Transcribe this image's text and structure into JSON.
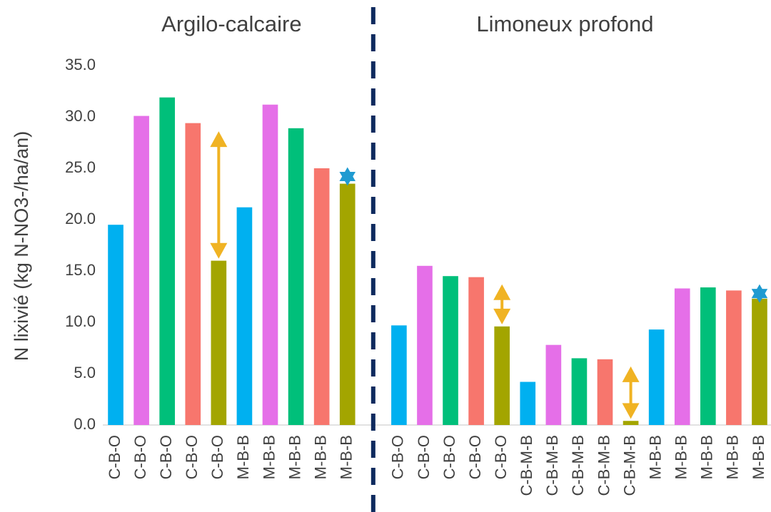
{
  "chart_data": {
    "type": "bar",
    "y_label": "N lixivié (kg N-NO3-/ha/an)",
    "group_labels": [
      "Argilo-calcaire",
      "Limoneux profond"
    ],
    "categories": [
      "C-B-O",
      "C-B-O",
      "C-B-O",
      "C-B-O",
      "C-B-O",
      "M-B-B",
      "M-B-B",
      "M-B-B",
      "M-B-B",
      "M-B-B",
      null,
      "C-B-O",
      "C-B-O",
      "C-B-O",
      "C-B-O",
      "C-B-O",
      "C-B-M-B",
      "C-B-M-B",
      "C-B-M-B",
      "C-B-M-B",
      "C-B-M-B",
      "M-B-B",
      "M-B-B",
      "M-B-B",
      "M-B-B",
      "M-B-B"
    ],
    "values": [
      19.5,
      30.1,
      31.9,
      29.4,
      16.0,
      21.2,
      31.2,
      28.9,
      25.0,
      23.5,
      null,
      9.7,
      15.5,
      14.5,
      14.4,
      9.6,
      4.2,
      7.8,
      6.5,
      6.4,
      0.4,
      9.3,
      13.3,
      13.4,
      13.1,
      12.3
    ],
    "colors": [
      "#00b0f0",
      "#e56fe8",
      "#00bf7a",
      "#f7766d",
      "#a3a500",
      "#00b0f0",
      "#e56fe8",
      "#00bf7a",
      "#f7766d",
      "#a3a500",
      null,
      "#00b0f0",
      "#e56fe8",
      "#00bf7a",
      "#f7766d",
      "#a3a500",
      "#00b0f0",
      "#e56fe8",
      "#00bf7a",
      "#f7766d",
      "#a3a500",
      "#00b0f0",
      "#e56fe8",
      "#00bf7a",
      "#f7766d",
      "#a3a500"
    ],
    "ylim": [
      0,
      35
    ],
    "yticks": [
      {
        "value": 0,
        "label": "0.0"
      },
      {
        "value": 5,
        "label": "5.0"
      },
      {
        "value": 10,
        "label": "10.0"
      },
      {
        "value": 15,
        "label": "15.0"
      },
      {
        "value": 20,
        "label": "20.0"
      },
      {
        "value": 25,
        "label": "25.0"
      },
      {
        "value": 30,
        "label": "30.0"
      },
      {
        "value": 35,
        "label": "35.0"
      }
    ],
    "grid": false,
    "arrows": [
      {
        "category": 4,
        "values": [
          28.6,
          16.2
        ]
      },
      {
        "category": 15,
        "values": [
          13.7,
          9.8
        ]
      },
      {
        "category": 20,
        "values": [
          5.7,
          0.6
        ]
      }
    ],
    "stars": [
      {
        "category": 9,
        "value": 24.2
      },
      {
        "category": 25,
        "value": 12.8
      }
    ]
  }
}
